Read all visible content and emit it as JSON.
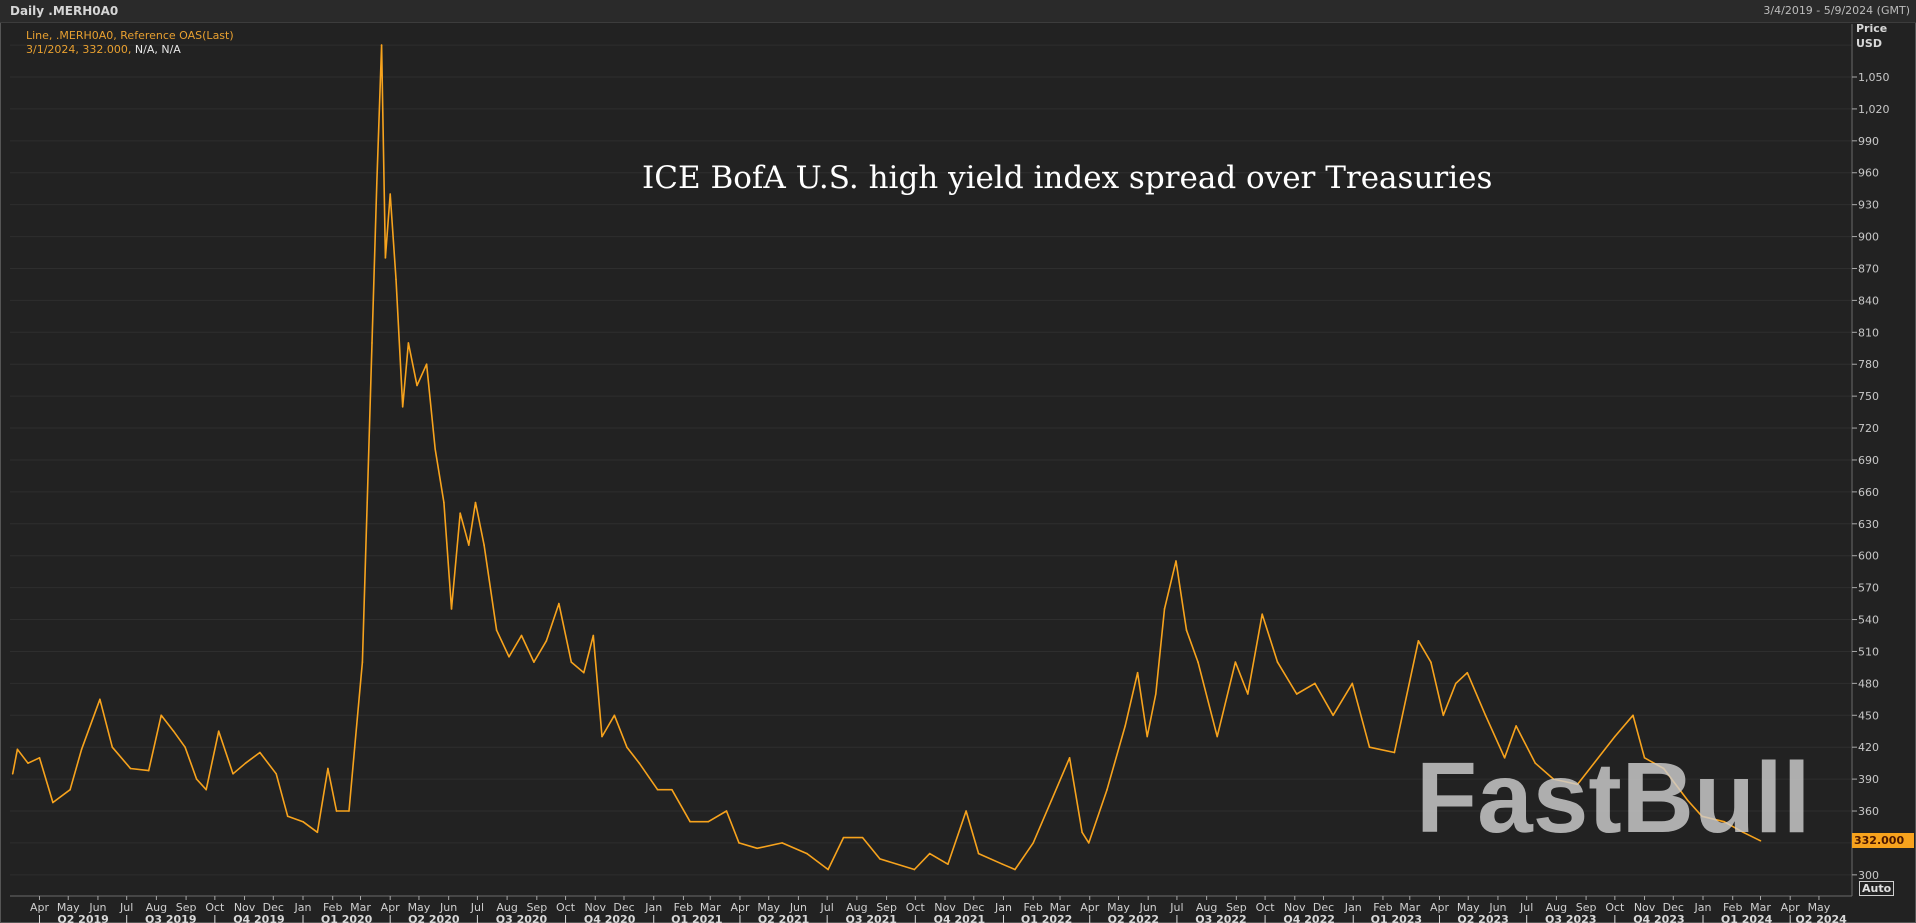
{
  "window": {
    "title": "Daily .MERH0A0",
    "date_range": "3/4/2019 - 5/9/2024 (GMT)"
  },
  "legend": {
    "line1": "Line, .MERH0A0, Reference OAS(Last)",
    "line2_orange": "3/1/2024, 332.000,",
    "line2_white": "N/A, N/A"
  },
  "axis": {
    "price_label": "Price",
    "currency_label": "USD",
    "last_price_tag": "332.000",
    "auto_button": "Auto"
  },
  "watermark": "FastBull",
  "colors": {
    "series": "#f7a31d",
    "background": "#222222",
    "grid": "#2e2e2e"
  },
  "chart_data": {
    "type": "line",
    "title": "ICE BofA U.S. high yield index spread over Treasuries",
    "xlabel": "",
    "ylabel": "",
    "xlim": [
      "2019-03-04",
      "2024-05-09"
    ],
    "ylim": [
      290,
      1080
    ],
    "grid": true,
    "y_tick_labels": [
      "1,050",
      "1,020",
      "990",
      "960",
      "930",
      "900",
      "870",
      "840",
      "810",
      "780",
      "750",
      "720",
      "690",
      "660",
      "630",
      "600",
      "570",
      "540",
      "510",
      "480",
      "450",
      "420",
      "390",
      "360",
      "300"
    ],
    "y_tick_values": [
      1050,
      1020,
      990,
      960,
      930,
      900,
      870,
      840,
      810,
      780,
      750,
      720,
      690,
      660,
      630,
      600,
      570,
      540,
      510,
      480,
      450,
      420,
      390,
      360,
      300
    ],
    "x_first_month": "2019-04",
    "x_month_labels": [
      "Apr",
      "May",
      "Jun",
      "Jul",
      "Aug",
      "Sep",
      "Oct",
      "Nov",
      "Dec",
      "Jan",
      "Feb",
      "Mar",
      "Apr",
      "May",
      "Jun",
      "Jul",
      "Aug",
      "Sep",
      "Oct",
      "Nov",
      "Dec",
      "Jan",
      "Feb",
      "Mar",
      "Apr",
      "May",
      "Jun",
      "Jul",
      "Aug",
      "Sep",
      "Oct",
      "Nov",
      "Dec",
      "Jan",
      "Feb",
      "Mar",
      "Apr",
      "May",
      "Jun",
      "Jul",
      "Aug",
      "Sep",
      "Oct",
      "Nov",
      "Dec",
      "Jan",
      "Feb",
      "Mar",
      "Apr",
      "May",
      "Jun",
      "Jul",
      "Aug",
      "Sep",
      "Oct",
      "Nov",
      "Dec",
      "Jan",
      "Feb",
      "Mar",
      "Apr",
      "May"
    ],
    "x_quarter_labels": [
      "Q2 2019",
      "Q3 2019",
      "Q4 2019",
      "Q1 2020",
      "Q2 2020",
      "Q3 2020",
      "Q4 2020",
      "Q1 2021",
      "Q2 2021",
      "Q3 2021",
      "Q4 2021",
      "Q1 2022",
      "Q2 2022",
      "Q3 2022",
      "Q4 2022",
      "Q1 2023",
      "Q2 2023",
      "Q3 2023",
      "Q4 2023",
      "Q1 2024",
      "Q2 2024"
    ],
    "series": [
      {
        "x": [
          "2019-03-04",
          "2019-03-09",
          "2019-03-20",
          "2019-04-01",
          "2019-04-15",
          "2019-05-03",
          "2019-05-15",
          "2019-06-03",
          "2019-06-16",
          "2019-07-05",
          "2019-07-24",
          "2019-08-06",
          "2019-08-19",
          "2019-08-31",
          "2019-09-12",
          "2019-09-22",
          "2019-10-05",
          "2019-10-20",
          "2019-11-02",
          "2019-11-17",
          "2019-12-04",
          "2019-12-16",
          "2020-01-01",
          "2020-01-16",
          "2020-01-27",
          "2020-02-05",
          "2020-02-18",
          "2020-02-24",
          "2020-03-03",
          "2020-03-08",
          "2020-03-13",
          "2020-03-18",
          "2020-03-23",
          "2020-03-27",
          "2020-04-01",
          "2020-04-07",
          "2020-04-14",
          "2020-04-20",
          "2020-04-29",
          "2020-05-09",
          "2020-05-18",
          "2020-05-27",
          "2020-06-04",
          "2020-06-13",
          "2020-06-22",
          "2020-06-29",
          "2020-07-08",
          "2020-07-21",
          "2020-08-03",
          "2020-08-16",
          "2020-08-29",
          "2020-09-11",
          "2020-09-24",
          "2020-10-07",
          "2020-10-20",
          "2020-10-30",
          "2020-11-08",
          "2020-11-21",
          "2020-12-04",
          "2020-12-17",
          "2021-01-05",
          "2021-01-20",
          "2021-02-08",
          "2021-02-27",
          "2021-03-18",
          "2021-03-31",
          "2021-04-19",
          "2021-05-15",
          "2021-06-10",
          "2021-07-02",
          "2021-07-18",
          "2021-08-07",
          "2021-08-25",
          "2021-09-30",
          "2021-10-16",
          "2021-11-04",
          "2021-11-23",
          "2021-12-06",
          "2021-12-31",
          "2022-01-13",
          "2022-02-01",
          "2022-02-20",
          "2022-03-11",
          "2022-03-24",
          "2022-03-31",
          "2022-04-19",
          "2022-05-08",
          "2022-05-21",
          "2022-05-31",
          "2022-06-09",
          "2022-06-18",
          "2022-06-30",
          "2022-07-11",
          "2022-07-23",
          "2022-08-12",
          "2022-08-31",
          "2022-09-13",
          "2022-09-28",
          "2022-10-14",
          "2022-11-03",
          "2022-11-22",
          "2022-12-11",
          "2022-12-31",
          "2023-01-18",
          "2023-02-13",
          "2023-03-10",
          "2023-03-23",
          "2023-04-05",
          "2023-04-18",
          "2023-04-30",
          "2023-05-19",
          "2023-06-08",
          "2023-06-20",
          "2023-07-10",
          "2023-07-29",
          "2023-08-23",
          "2023-10-01",
          "2023-10-20",
          "2023-11-01",
          "2023-11-21",
          "2023-12-16",
          "2023-12-31",
          "2024-01-23",
          "2024-02-12",
          "2024-03-01"
        ],
        "y": [
          395,
          418,
          405,
          410,
          368,
          380,
          418,
          465,
          420,
          400,
          398,
          450,
          435,
          420,
          390,
          380,
          435,
          395,
          405,
          415,
          395,
          355,
          350,
          340,
          400,
          360,
          360,
          420,
          500,
          650,
          800,
          950,
          1080,
          880,
          940,
          860,
          740,
          800,
          760,
          780,
          700,
          650,
          550,
          640,
          610,
          650,
          610,
          530,
          505,
          525,
          500,
          520,
          555,
          500,
          490,
          525,
          430,
          450,
          420,
          405,
          380,
          380,
          350,
          350,
          360,
          330,
          325,
          330,
          320,
          305,
          335,
          335,
          315,
          305,
          320,
          310,
          360,
          320,
          310,
          305,
          330,
          370,
          410,
          340,
          330,
          380,
          440,
          490,
          430,
          470,
          550,
          595,
          530,
          500,
          430,
          500,
          470,
          545,
          500,
          470,
          480,
          450,
          480,
          420,
          415,
          520,
          500,
          450,
          480,
          490,
          450,
          410,
          440,
          405,
          390,
          385,
          430,
          450,
          410,
          400,
          370,
          355,
          350,
          340,
          332
        ]
      }
    ]
  }
}
